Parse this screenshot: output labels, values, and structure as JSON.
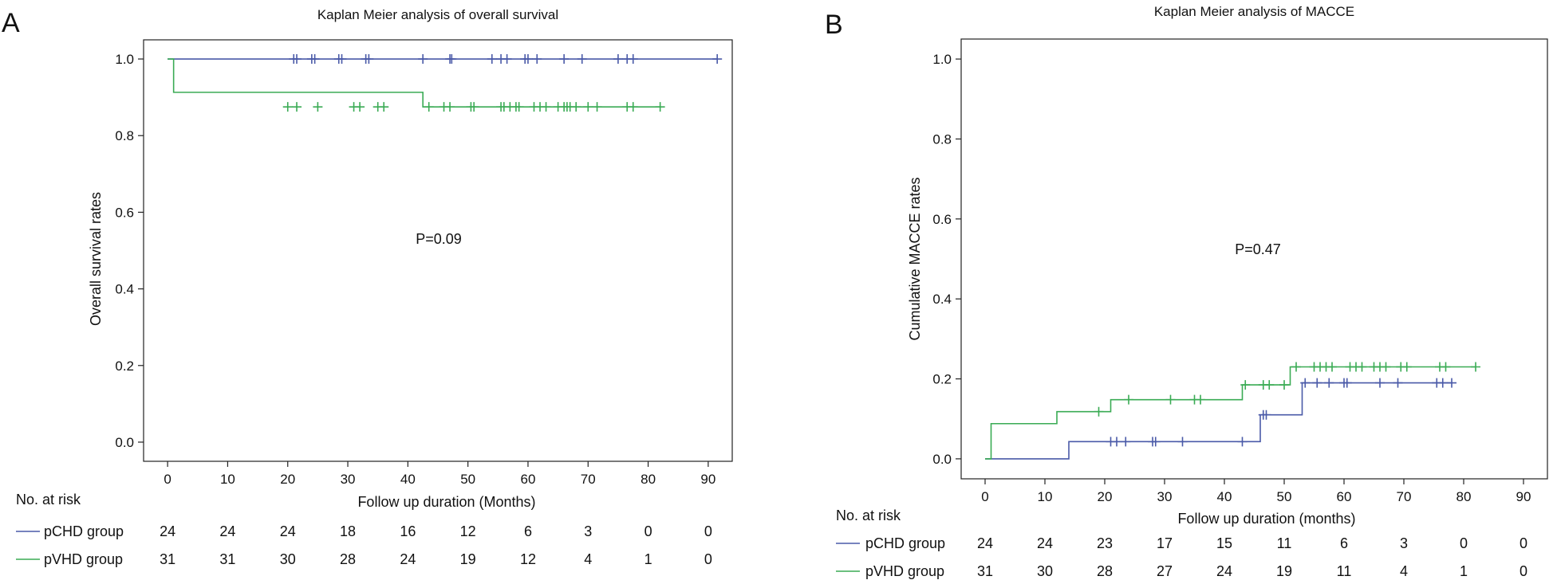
{
  "chart_data": [
    {
      "type": "line",
      "panel_label": "A",
      "title": "Kaplan Meier analysis of overall survival",
      "xlabel": "Follow up duration (Months)",
      "ylabel": "Overall survival rates",
      "xlim": [
        -4,
        94
      ],
      "ylim": [
        -0.05,
        1.05
      ],
      "xticks": [
        0,
        10,
        20,
        30,
        40,
        50,
        60,
        70,
        80,
        90
      ],
      "yticks": [
        0.0,
        0.2,
        0.4,
        0.6,
        0.8,
        1.0
      ],
      "ytick_labels": [
        "0.0",
        "0.2",
        "0.4",
        "0.6",
        "0.8",
        "1.0"
      ],
      "annotation": "P=0.09",
      "grid": false,
      "series": [
        {
          "name": "pCHD group",
          "color": "#4a5aa8",
          "steps": [
            [
              0,
              1.0
            ],
            [
              91.5,
              1.0
            ]
          ],
          "censored": [
            21,
            21.5,
            24,
            24.5,
            28.5,
            29,
            33,
            33.5,
            42.5,
            47,
            47.3,
            54,
            55.5,
            56.5,
            59.5,
            60,
            61.5,
            66,
            69,
            75,
            76.5,
            77.5,
            91.5
          ],
          "censored_y": 1.0
        },
        {
          "name": "pVHD group",
          "color": "#3aab54",
          "steps": [
            [
              0,
              1.0
            ],
            [
              1,
              0.913
            ],
            [
              42.5,
              0.875
            ],
            [
              82,
              0.875
            ]
          ],
          "censored": [
            20,
            21.5,
            25,
            31,
            32,
            35,
            36,
            43.5,
            46,
            47,
            50.5,
            51,
            55.5,
            56,
            57,
            58,
            58.5,
            61,
            62,
            63,
            65,
            66,
            66.5,
            67,
            68,
            70,
            71.5,
            76.5,
            77.5,
            82
          ],
          "censored_y": 0.875
        }
      ],
      "risk_table": {
        "header": "No. at risk",
        "times": [
          0,
          10,
          20,
          30,
          40,
          50,
          60,
          70,
          80,
          90
        ],
        "rows": [
          {
            "label": "pCHD group",
            "values": [
              "24",
              "24",
              "24",
              "18",
              "16",
              "12",
              "6",
              "3",
              "0",
              "0"
            ]
          },
          {
            "label": "pVHD group",
            "values": [
              "31",
              "31",
              "30",
              "28",
              "24",
              "19",
              "12",
              "4",
              "1",
              "0"
            ]
          }
        ]
      }
    },
    {
      "type": "line",
      "panel_label": "B",
      "title": "Kaplan Meier analysis of MACCE",
      "xlabel": "Follow up duration (months)",
      "ylabel": "Cumulative MACCE rates",
      "xlim": [
        -4,
        94
      ],
      "ylim": [
        -0.05,
        1.05
      ],
      "xticks": [
        0,
        10,
        20,
        30,
        40,
        50,
        60,
        70,
        80,
        90
      ],
      "yticks": [
        0.0,
        0.2,
        0.4,
        0.6,
        0.8,
        1.0
      ],
      "ytick_labels": [
        "0.0",
        "0.2",
        "0.4",
        "0.6",
        "0.8",
        "1.0"
      ],
      "annotation": "P=0.47",
      "grid": false,
      "series": [
        {
          "name": "pCHD group",
          "color": "#4a5aa8",
          "steps": [
            [
              0,
              0.0
            ],
            [
              14,
              0.043
            ],
            [
              46,
              0.11
            ],
            [
              53,
              0.19
            ],
            [
              78,
              0.19
            ]
          ],
          "censored": [
            21,
            22,
            23.5,
            28,
            28.5,
            33,
            43,
            46.5,
            47,
            53.5,
            55.5,
            57.5,
            60,
            60.5,
            66,
            69,
            75.5,
            76.5,
            78
          ],
          "censored_y": null
        },
        {
          "name": "pVHD group",
          "color": "#3aab54",
          "steps": [
            [
              0,
              0.0
            ],
            [
              1,
              0.088
            ],
            [
              12,
              0.118
            ],
            [
              21,
              0.148
            ],
            [
              43,
              0.185
            ],
            [
              51,
              0.23
            ],
            [
              82,
              0.23
            ]
          ],
          "censored": [
            19,
            24,
            31,
            35,
            36,
            43.5,
            46.5,
            47.5,
            50,
            52,
            55,
            56,
            57,
            58,
            61,
            62,
            63,
            65,
            66,
            67,
            69.5,
            70.5,
            76,
            77,
            82
          ],
          "censored_y": null
        }
      ],
      "risk_table": {
        "header": "No. at risk",
        "times": [
          0,
          10,
          20,
          30,
          40,
          50,
          60,
          70,
          80,
          90
        ],
        "rows": [
          {
            "label": "pCHD group",
            "values": [
              "24",
              "24",
              "23",
              "17",
              "15",
              "11",
              "6",
              "3",
              "0",
              "0"
            ]
          },
          {
            "label": "pVHD group",
            "values": [
              "31",
              "30",
              "28",
              "27",
              "24",
              "19",
              "11",
              "4",
              "1",
              "0"
            ]
          }
        ]
      }
    }
  ]
}
